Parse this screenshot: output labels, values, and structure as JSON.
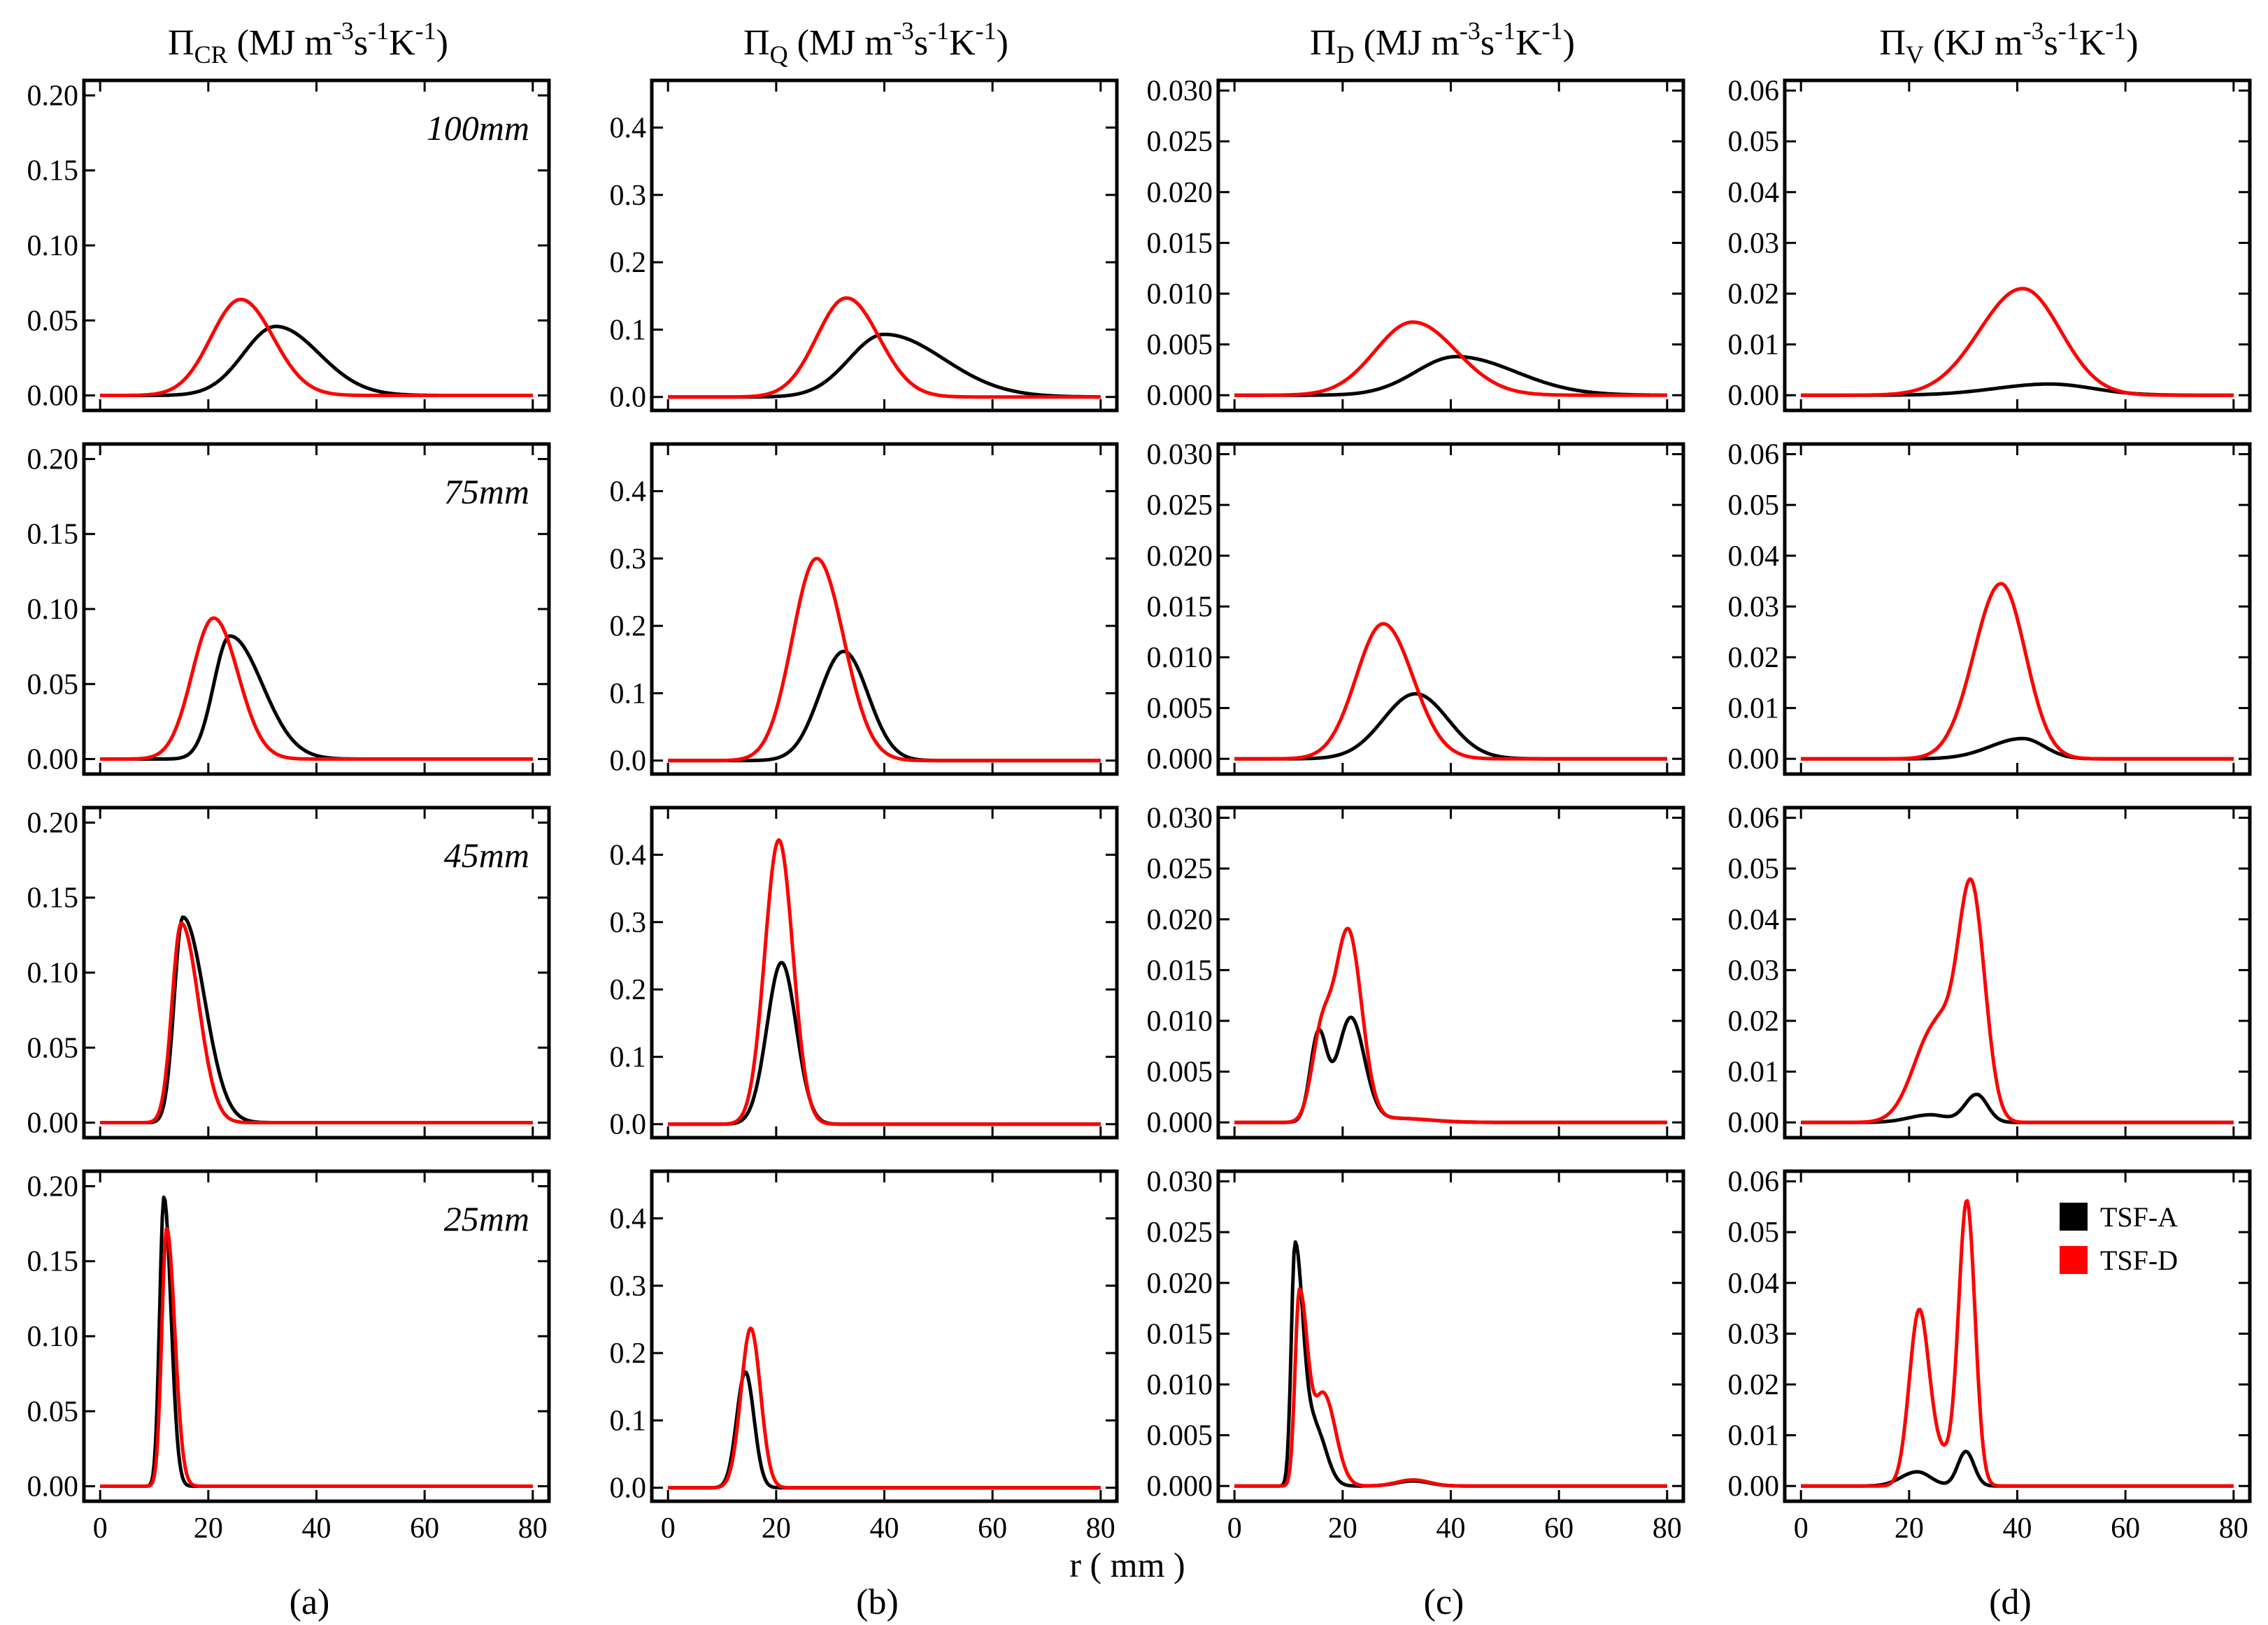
{
  "chart_data": {
    "type": "line",
    "layout": "4 rows x 4 columns grid of line charts",
    "xlabel": "r ( mm )",
    "xlim": [
      -3,
      83
    ],
    "xticks": [
      0,
      20,
      40,
      60,
      80
    ],
    "heights": [
      "100mm",
      "75mm",
      "45mm",
      "25mm"
    ],
    "legend": {
      "location": "right, bottom-right panel",
      "entries": [
        {
          "name": "TSF-A",
          "color": "#000000"
        },
        {
          "name": "TSF-D",
          "color": "#ff0000"
        }
      ]
    },
    "columns": [
      {
        "title": {
          "symbol": "Π",
          "sub": "CR",
          "unit_pre": " (MJ m",
          "exp1": "-3",
          "mid": "s",
          "exp2": "-1",
          "post": "K",
          "exp3": "-1",
          "close": ")"
        },
        "panel_label": "(a)",
        "ylim": [
          -0.01,
          0.21
        ],
        "yticks": [
          "0.00",
          "0.05",
          "0.10",
          "0.15",
          "0.20"
        ],
        "rows": [
          {
            "series": [
              {
                "name": "TSF-A",
                "peaks": [
                  {
                    "x": 32.5,
                    "y": 0.046,
                    "wl": 6,
                    "wr": 8
                  }
                ]
              },
              {
                "name": "TSF-D",
                "peaks": [
                  {
                    "x": 26,
                    "y": 0.064,
                    "wl": 5.5,
                    "wr": 6
                  }
                ]
              }
            ]
          },
          {
            "series": [
              {
                "name": "TSF-A",
                "peaks": [
                  {
                    "x": 24,
                    "y": 0.082,
                    "wl": 3,
                    "wr": 6
                  }
                ]
              },
              {
                "name": "TSF-D",
                "peaks": [
                  {
                    "x": 21,
                    "y": 0.094,
                    "wl": 4,
                    "wr": 4.5
                  }
                ]
              }
            ]
          },
          {
            "series": [
              {
                "name": "TSF-A",
                "peaks": [
                  {
                    "x": 15.3,
                    "y": 0.137,
                    "wl": 1.6,
                    "wr": 4
                  }
                ]
              },
              {
                "name": "TSF-D",
                "peaks": [
                  {
                    "x": 15,
                    "y": 0.133,
                    "wl": 1.7,
                    "wr": 3.2
                  }
                ]
              }
            ]
          },
          {
            "series": [
              {
                "name": "TSF-A",
                "peaks": [
                  {
                    "x": 11.8,
                    "y": 0.193,
                    "wl": 0.8,
                    "wr": 1.3
                  }
                ]
              },
              {
                "name": "TSF-D",
                "peaks": [
                  {
                    "x": 12.3,
                    "y": 0.172,
                    "wl": 0.9,
                    "wr": 1.5
                  }
                ]
              }
            ]
          }
        ]
      },
      {
        "title": {
          "symbol": "Π",
          "sub": "Q",
          "unit_pre": " (MJ m",
          "exp1": "-3",
          "mid": "s",
          "exp2": "-1",
          "post": "K",
          "exp3": "-1",
          "close": ")"
        },
        "panel_label": "(b)",
        "ylim": [
          -0.02,
          0.47
        ],
        "yticks": [
          "0.0",
          "0.1",
          "0.2",
          "0.3",
          "0.4"
        ],
        "rows": [
          {
            "series": [
              {
                "name": "TSF-A",
                "peaks": [
                  {
                    "x": 40,
                    "y": 0.093,
                    "wl": 6.5,
                    "wr": 11
                  }
                ]
              },
              {
                "name": "TSF-D",
                "peaks": [
                  {
                    "x": 33,
                    "y": 0.147,
                    "wl": 5.5,
                    "wr": 6
                  }
                ]
              }
            ]
          },
          {
            "series": [
              {
                "name": "TSF-A",
                "peaks": [
                  {
                    "x": 32.5,
                    "y": 0.162,
                    "wl": 4.5,
                    "wr": 4.5
                  }
                ]
              },
              {
                "name": "TSF-D",
                "peaks": [
                  {
                    "x": 27.5,
                    "y": 0.3,
                    "wl": 4.5,
                    "wr": 5
                  }
                ]
              }
            ]
          },
          {
            "series": [
              {
                "name": "TSF-A",
                "peaks": [
                  {
                    "x": 21,
                    "y": 0.24,
                    "wl": 2.7,
                    "wr": 2.7
                  }
                ]
              },
              {
                "name": "TSF-D",
                "peaks": [
                  {
                    "x": 20.5,
                    "y": 0.422,
                    "wl": 2.6,
                    "wr": 2.6
                  }
                ]
              }
            ]
          },
          {
            "series": [
              {
                "name": "TSF-A",
                "peaks": [
                  {
                    "x": 14.3,
                    "y": 0.172,
                    "wl": 1.6,
                    "wr": 1.6
                  }
                ]
              },
              {
                "name": "TSF-D",
                "peaks": [
                  {
                    "x": 15.3,
                    "y": 0.237,
                    "wl": 1.8,
                    "wr": 1.8
                  }
                ]
              }
            ]
          }
        ]
      },
      {
        "title": {
          "symbol": "Π",
          "sub": "D",
          "unit_pre": " (MJ m",
          "exp1": "-3",
          "mid": "s",
          "exp2": "-1",
          "post": "K",
          "exp3": "-1",
          "close": ")"
        },
        "panel_label": "(c)",
        "ylim": [
          -0.0015,
          0.031
        ],
        "yticks": [
          "0.000",
          "0.005",
          "0.010",
          "0.015",
          "0.020",
          "0.025",
          "0.030"
        ],
        "rows": [
          {
            "series": [
              {
                "name": "TSF-A",
                "peaks": [
                  {
                    "x": 41,
                    "y": 0.0038,
                    "wl": 7.5,
                    "wr": 11
                  }
                ]
              },
              {
                "name": "TSF-D",
                "peaks": [
                  {
                    "x": 33,
                    "y": 0.0072,
                    "wl": 7,
                    "wr": 8
                  }
                ]
              }
            ]
          },
          {
            "series": [
              {
                "name": "TSF-A",
                "peaks": [
                  {
                    "x": 33.5,
                    "y": 0.0064,
                    "wl": 6,
                    "wr": 6
                  }
                ]
              },
              {
                "name": "TSF-D",
                "peaks": [
                  {
                    "x": 27.5,
                    "y": 0.0133,
                    "wl": 5,
                    "wr": 5.5
                  }
                ]
              }
            ]
          },
          {
            "series": [
              {
                "name": "TSF-A",
                "peaks": [
                  {
                    "x": 21.5,
                    "y": 0.0102,
                    "wl": 2.5,
                    "wr": 2.5
                  },
                  {
                    "x": 15.5,
                    "y": 0.0085,
                    "wl": 1.5,
                    "wr": 1.5
                  },
                  {
                    "x": 30,
                    "y": 0.0004,
                    "wl": 6,
                    "wr": 6
                  }
                ]
              },
              {
                "name": "TSF-D",
                "peaks": [
                  {
                    "x": 21,
                    "y": 0.0188,
                    "wl": 2.5,
                    "wr": 2.5
                  },
                  {
                    "x": 16,
                    "y": 0.0078,
                    "wl": 1.8,
                    "wr": 1.8
                  },
                  {
                    "x": 30,
                    "y": 0.0004,
                    "wl": 6,
                    "wr": 6
                  }
                ]
              }
            ]
          },
          {
            "series": [
              {
                "name": "TSF-A",
                "peaks": [
                  {
                    "x": 11.2,
                    "y": 0.0238,
                    "wl": 0.7,
                    "wr": 1.5
                  },
                  {
                    "x": 15,
                    "y": 0.0055,
                    "wl": 1.5,
                    "wr": 2
                  },
                  {
                    "x": 33,
                    "y": 0.0005,
                    "wl": 3,
                    "wr": 3
                  }
                ]
              },
              {
                "name": "TSF-D",
                "peaks": [
                  {
                    "x": 12,
                    "y": 0.019,
                    "wl": 0.8,
                    "wr": 1.5
                  },
                  {
                    "x": 16.5,
                    "y": 0.009,
                    "wl": 1.8,
                    "wr": 2.2
                  },
                  {
                    "x": 33,
                    "y": 0.0006,
                    "wl": 3,
                    "wr": 3
                  }
                ]
              }
            ]
          }
        ]
      },
      {
        "title": {
          "symbol": "Π",
          "sub": "V",
          "unit_pre": " (KJ m",
          "exp1": "-3",
          "mid": "s",
          "exp2": "-1",
          "post": "K",
          "exp3": "-1",
          "close": ")"
        },
        "panel_label": "(d)",
        "ylim": [
          -0.003,
          0.062
        ],
        "yticks": [
          "0.00",
          "0.01",
          "0.02",
          "0.03",
          "0.04",
          "0.05",
          "0.06"
        ],
        "rows": [
          {
            "series": [
              {
                "name": "TSF-A",
                "peaks": [
                  {
                    "x": 46,
                    "y": 0.0022,
                    "wl": 10,
                    "wr": 8
                  }
                ]
              },
              {
                "name": "TSF-D",
                "peaks": [
                  {
                    "x": 41,
                    "y": 0.021,
                    "wl": 8,
                    "wr": 7
                  }
                ]
              }
            ]
          },
          {
            "series": [
              {
                "name": "TSF-A",
                "peaks": [
                  {
                    "x": 41,
                    "y": 0.004,
                    "wl": 6,
                    "wr": 4
                  }
                ]
              },
              {
                "name": "TSF-D",
                "peaks": [
                  {
                    "x": 37,
                    "y": 0.0345,
                    "wl": 5,
                    "wr": 4.5
                  }
                ]
              }
            ]
          },
          {
            "series": [
              {
                "name": "TSF-A",
                "peaks": [
                  {
                    "x": 32.5,
                    "y": 0.0055,
                    "wl": 2.2,
                    "wr": 2
                  },
                  {
                    "x": 24,
                    "y": 0.0015,
                    "wl": 4,
                    "wr": 3
                  }
                ]
              },
              {
                "name": "TSF-D",
                "peaks": [
                  {
                    "x": 31.5,
                    "y": 0.046,
                    "wl": 2.5,
                    "wr": 2.5
                  },
                  {
                    "x": 25,
                    "y": 0.019,
                    "wl": 4,
                    "wr": 3
                  }
                ]
              }
            ]
          },
          {
            "series": [
              {
                "name": "TSF-A",
                "peaks": [
                  {
                    "x": 30.5,
                    "y": 0.0068,
                    "wl": 1.5,
                    "wr": 1.5
                  },
                  {
                    "x": 21.5,
                    "y": 0.0028,
                    "wl": 3,
                    "wr": 2.5
                  }
                ]
              },
              {
                "name": "TSF-D",
                "peaks": [
                  {
                    "x": 30.7,
                    "y": 0.0545,
                    "wl": 1.5,
                    "wr": 1.5
                  },
                  {
                    "x": 21.8,
                    "y": 0.0325,
                    "wl": 1.8,
                    "wr": 1.8
                  },
                  {
                    "x": 26,
                    "y": 0.006,
                    "wl": 3,
                    "wr": 3
                  }
                ]
              }
            ]
          }
        ]
      }
    ]
  }
}
